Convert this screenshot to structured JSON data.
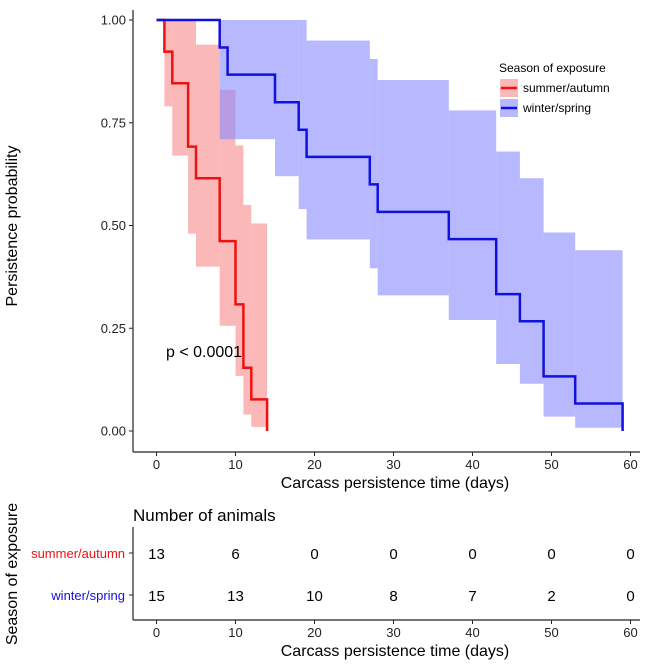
{
  "chart_data": {
    "type": "line",
    "subtype": "kaplan-meier step curve with confidence bands",
    "xlabel": "Carcass persistence time (days)",
    "ylabel": "Persistence probability",
    "xlim": [
      -3,
      62
    ],
    "ylim": [
      0,
      1
    ],
    "x_ticks": [
      "0",
      "10",
      "20",
      "30",
      "40",
      "50",
      "60"
    ],
    "x_tick_values": [
      0,
      10,
      20,
      30,
      40,
      50,
      60
    ],
    "y_ticks": [
      "0.00",
      "0.25",
      "0.50",
      "0.75",
      "1.00"
    ],
    "y_tick_values": [
      0,
      0.25,
      0.5,
      0.75,
      1
    ],
    "grid": false,
    "annotation": "p < 0.0001",
    "legend": {
      "title": "Season of exposure",
      "placement": "top-right",
      "entries": [
        "summer/autumn",
        "winter/spring"
      ]
    },
    "series": [
      {
        "name": "summer/autumn",
        "color": "#ee1111",
        "band_color": "#f88888",
        "times": [
          0,
          1,
          2,
          4,
          5,
          8,
          10,
          11,
          12,
          14
        ],
        "survival": [
          1,
          0.923,
          0.846,
          0.692,
          0.615,
          0.462,
          0.308,
          0.154,
          0.077,
          0
        ],
        "upper": [
          1,
          1,
          1,
          1,
          0.94,
          0.83,
          0.695,
          0.55,
          0.505,
          0
        ],
        "lower": [
          1,
          0.79,
          0.67,
          0.48,
          0.4,
          0.256,
          0.134,
          0.04,
          0.01,
          0
        ]
      },
      {
        "name": "winter/spring",
        "color": "#1111dd",
        "band_color": "#8888ff",
        "times": [
          0,
          8,
          9,
          15,
          18,
          19,
          27,
          28,
          37,
          43,
          46,
          49,
          53,
          59
        ],
        "survival": [
          1,
          0.933,
          0.867,
          0.8,
          0.733,
          0.667,
          0.6,
          0.533,
          0.467,
          0.333,
          0.267,
          0.133,
          0.067,
          0
        ],
        "upper": [
          1,
          1,
          1,
          1,
          1,
          0.95,
          0.905,
          0.854,
          0.78,
          0.68,
          0.615,
          0.483,
          0.44,
          0
        ],
        "lower": [
          1,
          0.71,
          0.71,
          0.62,
          0.54,
          0.466,
          0.396,
          0.33,
          0.27,
          0.163,
          0.115,
          0.035,
          0.008,
          0
        ]
      }
    ],
    "risk_table": {
      "title": "Number of animals",
      "ylabel": "Season of exposure",
      "xlabel": "Carcass persistence time (days)",
      "times": [
        0,
        10,
        20,
        30,
        40,
        50,
        60
      ],
      "time_labels": [
        "0",
        "10",
        "20",
        "30",
        "40",
        "50",
        "60"
      ],
      "rows": [
        {
          "label": "summer/autumn",
          "color": "#ee1111",
          "counts": [
            "13",
            "6",
            "0",
            "0",
            "0",
            "0",
            "0"
          ]
        },
        {
          "label": "winter/spring",
          "color": "#1111dd",
          "counts": [
            "15",
            "13",
            "10",
            "8",
            "7",
            "2",
            "0"
          ]
        }
      ]
    }
  }
}
